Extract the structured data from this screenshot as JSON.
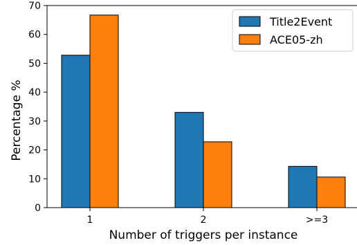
{
  "chart_data": {
    "type": "bar",
    "title": "",
    "xlabel": "Number of triggers per instance",
    "ylabel": "Percentage %",
    "categories": [
      "1",
      "2",
      ">=3"
    ],
    "series": [
      {
        "name": "Title2Event",
        "values": [
          52.8,
          33.0,
          14.3
        ],
        "color": "#1f77b4"
      },
      {
        "name": "ACE05-zh",
        "values": [
          66.7,
          22.8,
          10.6
        ],
        "color": "#ff7f0e"
      }
    ],
    "ylim": [
      0,
      70
    ],
    "yticks": [
      0,
      10,
      20,
      30,
      40,
      50,
      60,
      70
    ],
    "grid": false,
    "legend_position": "top-right"
  }
}
